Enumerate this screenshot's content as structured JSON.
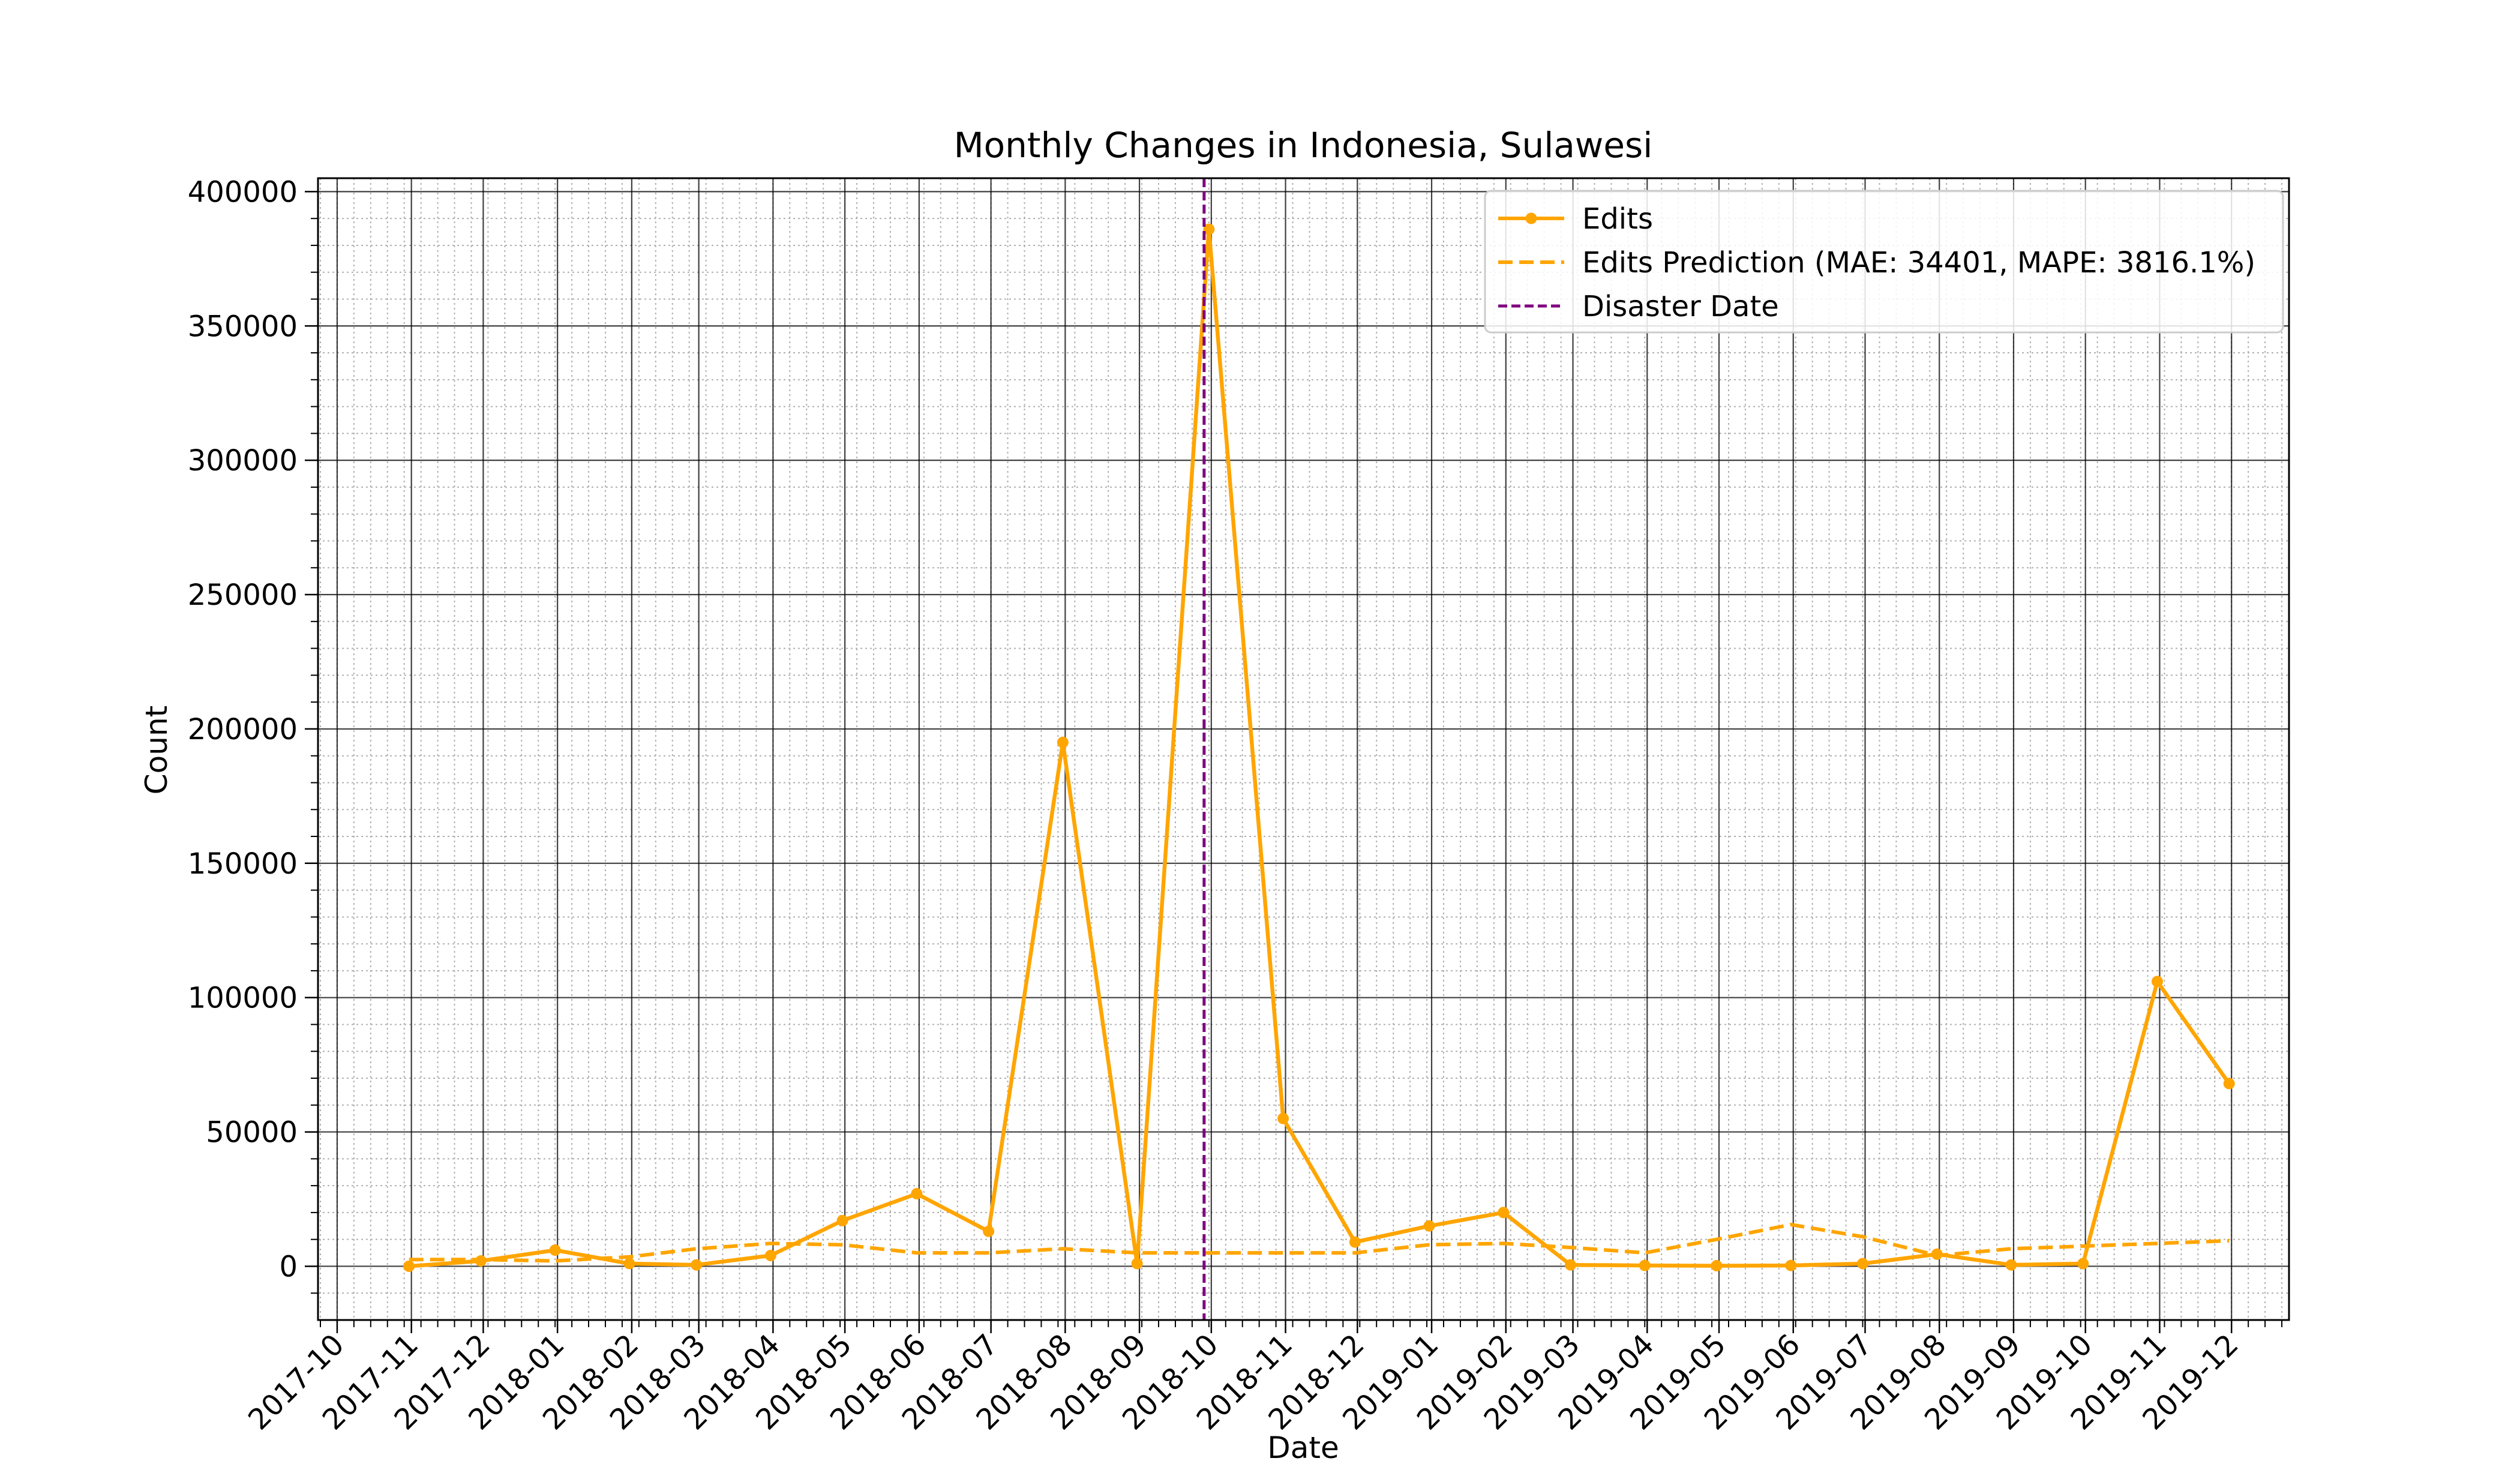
{
  "chart_data": {
    "type": "line",
    "title": "Monthly Changes in Indonesia, Sulawesi",
    "xlabel": "Date",
    "ylabel": "Count",
    "ylim": [
      -20000,
      405000
    ],
    "xlim": [
      "2017-09-23",
      "2019-12-25"
    ],
    "yticks": [
      0,
      50000,
      100000,
      150000,
      200000,
      250000,
      300000,
      350000,
      400000
    ],
    "xticks": [
      "2017-10",
      "2017-11",
      "2017-12",
      "2018-01",
      "2018-02",
      "2018-03",
      "2018-04",
      "2018-05",
      "2018-06",
      "2018-07",
      "2018-08",
      "2018-09",
      "2018-10",
      "2018-11",
      "2018-12",
      "2019-01",
      "2019-02",
      "2019-03",
      "2019-04",
      "2019-05",
      "2019-06",
      "2019-07",
      "2019-08",
      "2019-09",
      "2019-10",
      "2019-11",
      "2019-12"
    ],
    "grid": true,
    "legend_position": "top-right",
    "x": [
      "2017-10-31",
      "2017-11-30",
      "2017-12-31",
      "2018-01-31",
      "2018-02-28",
      "2018-03-31",
      "2018-04-30",
      "2018-05-31",
      "2018-06-30",
      "2018-07-31",
      "2018-08-31",
      "2018-09-30",
      "2018-10-31",
      "2018-11-30",
      "2018-12-31",
      "2019-01-31",
      "2019-02-28",
      "2019-03-31",
      "2019-04-30",
      "2019-05-31",
      "2019-06-30",
      "2019-07-31",
      "2019-08-31",
      "2019-09-30",
      "2019-10-31",
      "2019-11-30"
    ],
    "series": [
      {
        "name": "Edits",
        "style": "solid-marker",
        "color": "#FFA500",
        "values": [
          0,
          2000,
          6000,
          1000,
          500,
          4000,
          17000,
          27000,
          13000,
          195000,
          1000,
          386000,
          55000,
          9000,
          15000,
          20000,
          500,
          300,
          200,
          300,
          1000,
          4500,
          500,
          1000,
          106000,
          68000
        ]
      },
      {
        "name": "Edits Prediction (MAE: 34401, MAPE: 3816.1%)",
        "style": "dashed",
        "color": "#FFA500",
        "values": [
          2500,
          2500,
          2000,
          3500,
          6500,
          8500,
          8000,
          5000,
          5000,
          6500,
          5000,
          5000,
          5000,
          5000,
          8000,
          8500,
          7000,
          5000,
          10000,
          15500,
          11000,
          4000,
          6500,
          7500,
          8500,
          9500
        ]
      }
    ],
    "vline": {
      "name": "Disaster Date",
      "x": "2018-09-28",
      "color": "#800080"
    }
  }
}
